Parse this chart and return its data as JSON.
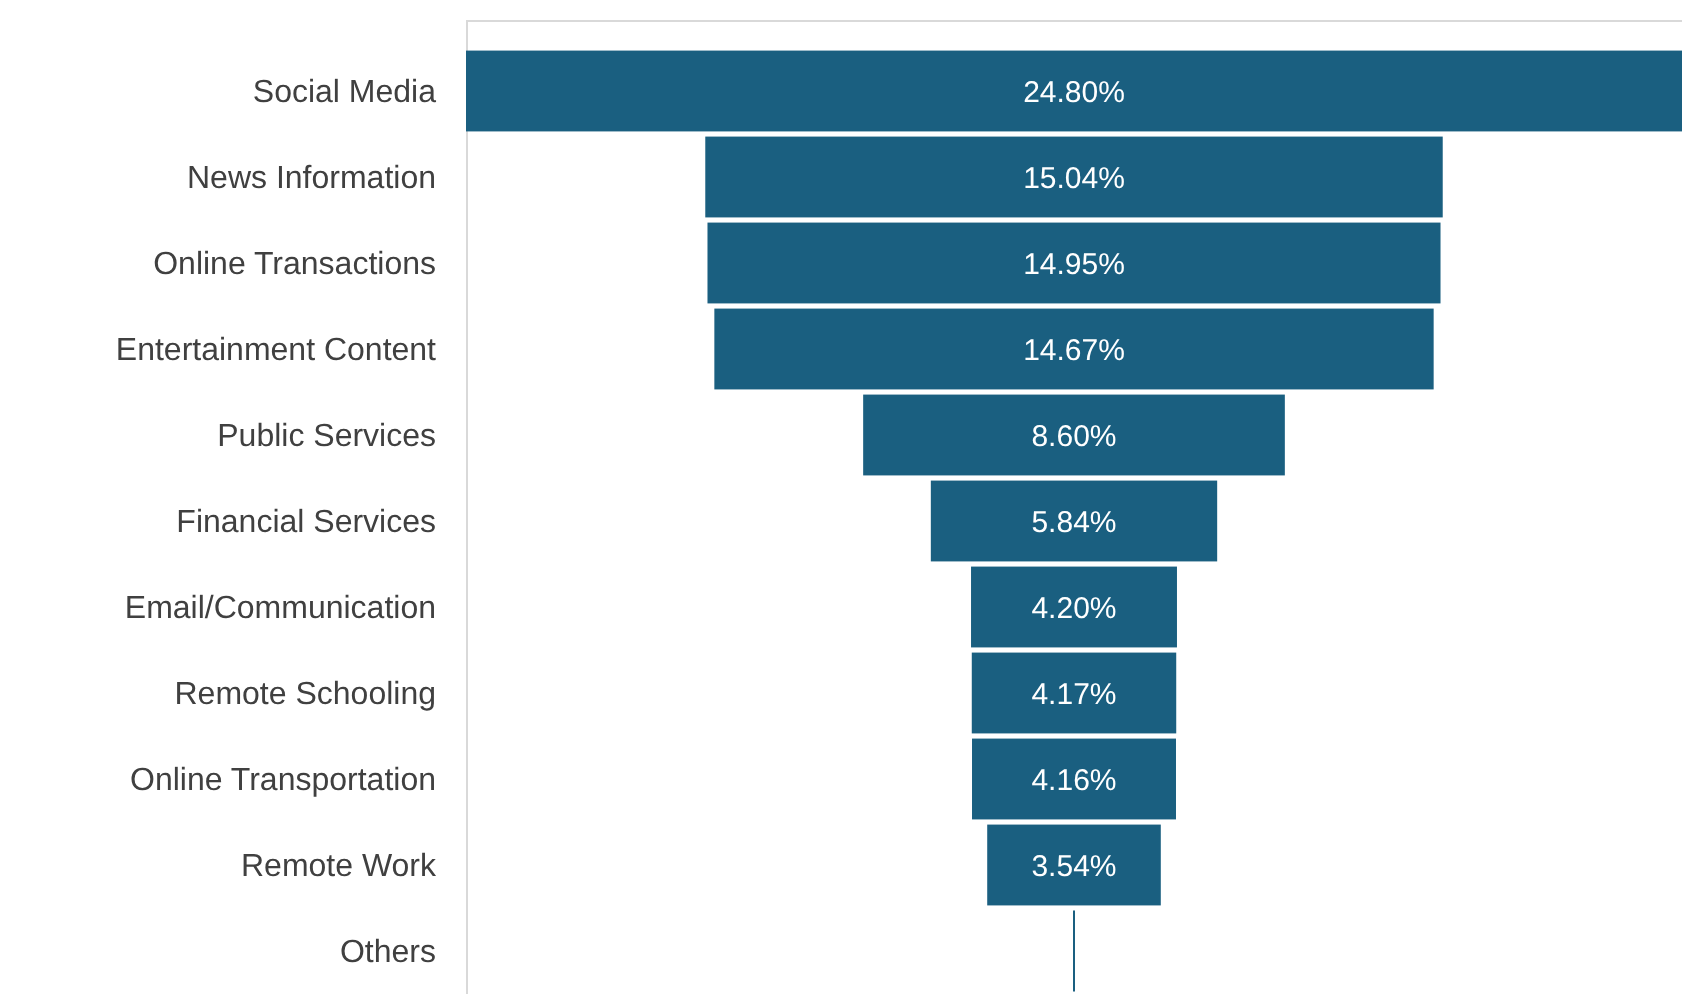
{
  "chart_data": {
    "type": "other",
    "categories": [
      "Social Media",
      "News Information",
      "Online Transactions",
      "Entertainment Content",
      "Public Services",
      "Financial Services",
      "Email/Communication",
      "Remote Schooling",
      "Online Transportation",
      "Remote Work",
      "Others"
    ],
    "values": [
      24.8,
      15.04,
      14.95,
      14.67,
      8.6,
      5.84,
      4.2,
      4.17,
      4.16,
      3.54,
      null
    ],
    "value_labels": [
      "24.80%",
      "15.04%",
      "14.95%",
      "14.67%",
      "8.60%",
      "5.84%",
      "4.20%",
      "4.17%",
      "4.16%",
      "3.54%",
      null
    ],
    "color": "#1a5f80"
  }
}
